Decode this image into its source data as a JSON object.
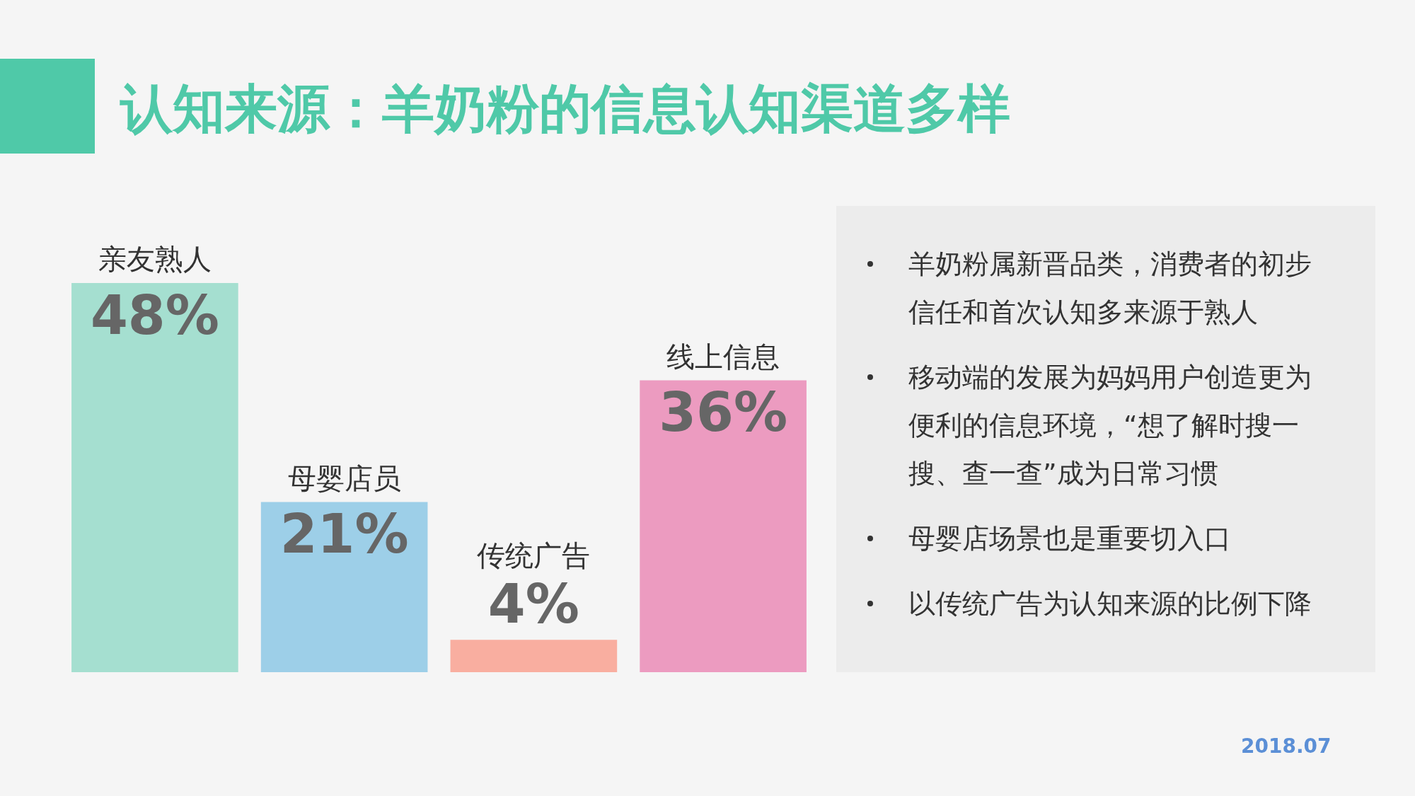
{
  "chart_data": {
    "type": "bar",
    "title": "认知来源：羊奶粉的信息认知渠道多样",
    "categories": [
      "亲友熟人",
      "母婴店员",
      "传统广告",
      "线上信息"
    ],
    "values": [
      48,
      21,
      4,
      36
    ],
    "value_labels": [
      "48%",
      "21%",
      "4%",
      "36%"
    ],
    "colors": [
      "#a5dfd0",
      "#9dcfe8",
      "#f9aea0",
      "#ec9bc0"
    ],
    "legend": false,
    "annotations": [
      "羊奶粉属新晋品类，消费者的初步信任和首次认知多来源于熟人",
      "移动端的发展为妈妈用户创造更为便利的信息环境，“想了解时搜一搜、查一查”成为日常习惯",
      "母婴店场景也是重要切入口",
      "以传统广告为认知来源的比例下降",
      "2018.07"
    ]
  }
}
